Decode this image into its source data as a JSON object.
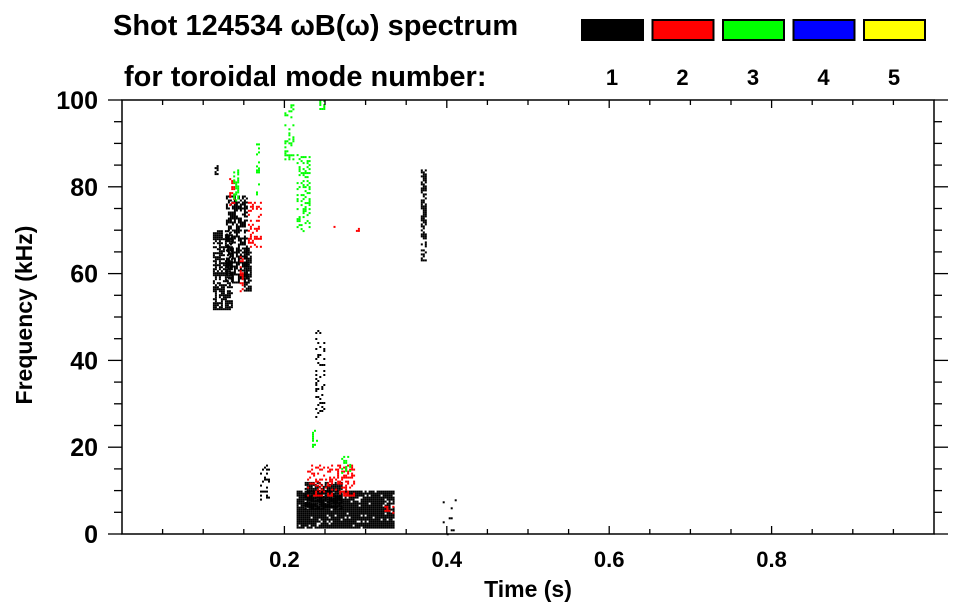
{
  "chart_data": {
    "type": "heatmap",
    "title_line1": "Shot 124534 ωB(ω) spectrum",
    "title_line2": "for toroidal mode number:",
    "xlabel": "Time (s)",
    "ylabel": "Frequency (kHz)",
    "xlim": [
      0.0,
      1.0
    ],
    "ylim": [
      0,
      100
    ],
    "x_ticks": [
      0.2,
      0.4,
      0.6,
      0.8
    ],
    "x_tick_labels": [
      "0.2",
      "0.4",
      "0.6",
      "0.8"
    ],
    "x_minor_step": 0.05,
    "y_ticks": [
      0,
      20,
      40,
      60,
      80,
      100
    ],
    "y_tick_labels": [
      "0",
      "20",
      "40",
      "60",
      "80",
      "100"
    ],
    "y_minor_step": 5,
    "grid": false,
    "legend": {
      "placement": "top-right",
      "entries": [
        {
          "label": "1",
          "color": "#000000"
        },
        {
          "label": "2",
          "color": "#ff0000"
        },
        {
          "label": "3",
          "color": "#00ff00"
        },
        {
          "label": "4",
          "color": "#0000ff"
        },
        {
          "label": "5",
          "color": "#ffff00"
        }
      ]
    },
    "features": [
      {
        "mode": 1,
        "t": [
          0.215,
          0.335
        ],
        "f": [
          1.5,
          10
        ],
        "density": 0.9
      },
      {
        "mode": 1,
        "t": [
          0.225,
          0.27
        ],
        "f": [
          6,
          12
        ],
        "density": 0.7
      },
      {
        "mode": 1,
        "t": [
          0.112,
          0.135
        ],
        "f": [
          52,
          70
        ],
        "density": 0.7
      },
      {
        "mode": 1,
        "t": [
          0.128,
          0.155
        ],
        "f": [
          58,
          78
        ],
        "density": 0.6
      },
      {
        "mode": 1,
        "t": [
          0.15,
          0.158
        ],
        "f": [
          56,
          66
        ],
        "density": 0.8
      },
      {
        "mode": 1,
        "t": [
          0.368,
          0.374
        ],
        "f": [
          63,
          84
        ],
        "density": 0.7
      },
      {
        "mode": 1,
        "t": [
          0.238,
          0.248
        ],
        "f": [
          27,
          47
        ],
        "density": 0.25
      },
      {
        "mode": 1,
        "t": [
          0.17,
          0.18
        ],
        "f": [
          8,
          16
        ],
        "density": 0.35
      },
      {
        "mode": 1,
        "t": [
          0.114,
          0.118
        ],
        "f": [
          83,
          85
        ],
        "density": 0.6
      },
      {
        "mode": 1,
        "t": [
          0.395,
          0.41
        ],
        "f": [
          0,
          8
        ],
        "density": 0.05
      },
      {
        "mode": 2,
        "t": [
          0.228,
          0.285
        ],
        "f": [
          9,
          16
        ],
        "density": 0.35
      },
      {
        "mode": 2,
        "t": [
          0.155,
          0.17
        ],
        "f": [
          66,
          77
        ],
        "density": 0.3
      },
      {
        "mode": 2,
        "t": [
          0.132,
          0.137
        ],
        "f": [
          76,
          82
        ],
        "density": 0.4
      },
      {
        "mode": 2,
        "t": [
          0.145,
          0.149
        ],
        "f": [
          56,
          64
        ],
        "density": 0.4
      },
      {
        "mode": 2,
        "t": [
          0.258,
          0.262
        ],
        "f": [
          70,
          71
        ],
        "density": 0.6
      },
      {
        "mode": 2,
        "t": [
          0.288,
          0.292
        ],
        "f": [
          70,
          71
        ],
        "density": 0.6
      },
      {
        "mode": 2,
        "t": [
          0.323,
          0.333
        ],
        "f": [
          5,
          6.5
        ],
        "density": 0.5
      },
      {
        "mode": 3,
        "t": [
          0.2,
          0.212
        ],
        "f": [
          86,
          99
        ],
        "density": 0.25
      },
      {
        "mode": 3,
        "t": [
          0.215,
          0.232
        ],
        "f": [
          70,
          88
        ],
        "density": 0.3
      },
      {
        "mode": 3,
        "t": [
          0.137,
          0.143
        ],
        "f": [
          77,
          84
        ],
        "density": 0.45
      },
      {
        "mode": 3,
        "t": [
          0.165,
          0.168
        ],
        "f": [
          78,
          90
        ],
        "density": 0.3
      },
      {
        "mode": 3,
        "t": [
          0.234,
          0.24
        ],
        "f": [
          20,
          24
        ],
        "density": 0.4
      },
      {
        "mode": 3,
        "t": [
          0.27,
          0.28
        ],
        "f": [
          14,
          18
        ],
        "density": 0.4
      },
      {
        "mode": 3,
        "t": [
          0.243,
          0.249
        ],
        "f": [
          98,
          100
        ],
        "density": 0.4
      }
    ]
  }
}
